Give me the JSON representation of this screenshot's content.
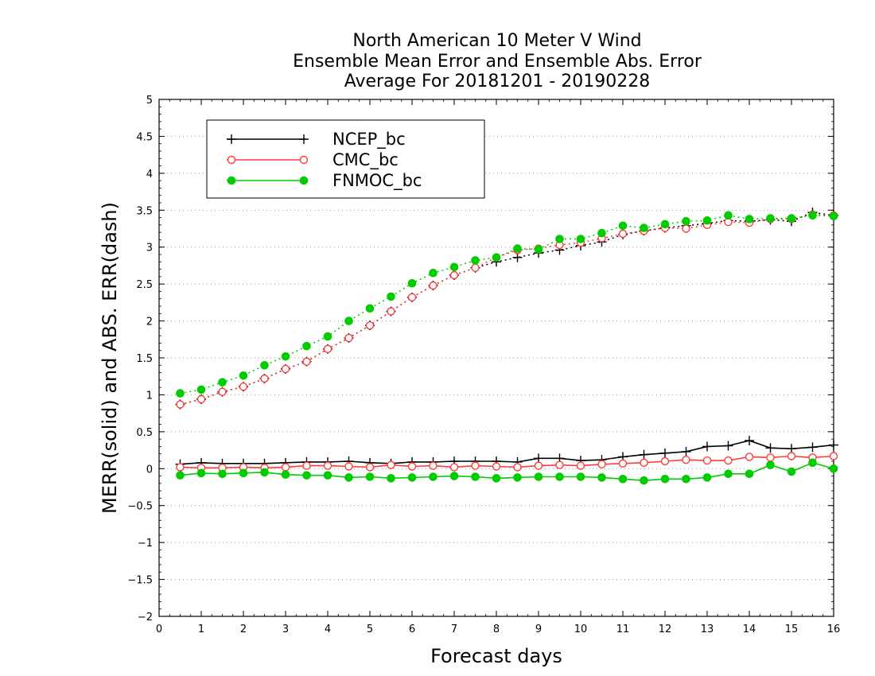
{
  "chart_data": {
    "type": "line",
    "title_lines": [
      "North American 10 Meter V Wind",
      "Ensemble Mean Error and Ensemble Abs. Error",
      "Average For 20181201 - 20190228"
    ],
    "xlabel": "Forecast days",
    "ylabel": "MERR(solid) and ABS. ERR(dash)",
    "xlim": [
      0,
      16
    ],
    "ylim": [
      -2,
      5
    ],
    "x_ticks": [
      "0",
      "1",
      "2",
      "3",
      "4",
      "5",
      "6",
      "7",
      "8",
      "9",
      "10",
      "11",
      "12",
      "13",
      "14",
      "15",
      "16"
    ],
    "y_ticks": [
      "5",
      "4.5",
      "4",
      "3.5",
      "3",
      "2.5",
      "2",
      "1.5",
      "1",
      "0.5",
      "0",
      "-0.5",
      "-1",
      "-1.5",
      "-2"
    ],
    "grid": "dotted horizontal",
    "legend_position": "top-left",
    "x": [
      0.5,
      1,
      1.5,
      2,
      2.5,
      3,
      3.5,
      4,
      4.5,
      5,
      5.5,
      6,
      6.5,
      7,
      7.5,
      8,
      8.5,
      9,
      9.5,
      10,
      10.5,
      11,
      11.5,
      12,
      12.5,
      13,
      13.5,
      14,
      14.5,
      15,
      15.5,
      16
    ],
    "series": [
      {
        "name": "NCEP_bc",
        "color": "#000000",
        "marker": "plus",
        "merr": [
          0.06,
          0.08,
          0.07,
          0.07,
          0.07,
          0.08,
          0.09,
          0.09,
          0.1,
          0.08,
          0.07,
          0.09,
          0.09,
          0.1,
          0.1,
          0.1,
          0.09,
          0.14,
          0.14,
          0.11,
          0.12,
          0.16,
          0.19,
          0.21,
          0.23,
          0.3,
          0.31,
          0.38,
          0.28,
          0.27,
          0.29,
          0.32
        ],
        "abs_err": [
          0.87,
          0.94,
          1.04,
          1.11,
          1.22,
          1.35,
          1.45,
          1.62,
          1.77,
          1.94,
          2.13,
          2.32,
          2.48,
          2.62,
          2.72,
          2.8,
          2.86,
          2.92,
          2.96,
          3.02,
          3.07,
          3.17,
          3.22,
          3.26,
          3.29,
          3.32,
          3.36,
          3.35,
          3.37,
          3.35,
          3.47,
          3.43
        ]
      },
      {
        "name": "CMC_bc",
        "color": "#ff3b3b",
        "marker": "open-circle",
        "merr": [
          0.02,
          0.01,
          0.01,
          0.02,
          0.01,
          0.02,
          0.04,
          0.04,
          0.03,
          0.02,
          0.05,
          0.03,
          0.04,
          0.02,
          0.04,
          0.03,
          0.02,
          0.04,
          0.05,
          0.04,
          0.06,
          0.07,
          0.08,
          0.1,
          0.12,
          0.11,
          0.11,
          0.16,
          0.15,
          0.17,
          0.15,
          0.17
        ],
        "abs_err": [
          0.87,
          0.94,
          1.04,
          1.11,
          1.22,
          1.35,
          1.45,
          1.62,
          1.77,
          1.94,
          2.13,
          2.32,
          2.48,
          2.62,
          2.72,
          2.86,
          2.96,
          2.98,
          3.03,
          3.06,
          3.12,
          3.18,
          3.22,
          3.26,
          3.25,
          3.3,
          3.34,
          3.33,
          3.38,
          3.38,
          3.44,
          3.43
        ]
      },
      {
        "name": "FNMOC_bc",
        "color": "#00cc00",
        "marker": "filled-circle",
        "merr": [
          -0.09,
          -0.06,
          -0.07,
          -0.06,
          -0.05,
          -0.08,
          -0.09,
          -0.09,
          -0.12,
          -0.11,
          -0.13,
          -0.12,
          -0.11,
          -0.1,
          -0.11,
          -0.13,
          -0.12,
          -0.11,
          -0.11,
          -0.11,
          -0.12,
          -0.14,
          -0.16,
          -0.14,
          -0.14,
          -0.12,
          -0.07,
          -0.07,
          0.05,
          -0.04,
          0.08,
          0.0
        ],
        "abs_err": [
          1.02,
          1.07,
          1.17,
          1.26,
          1.4,
          1.52,
          1.66,
          1.79,
          2.0,
          2.17,
          2.33,
          2.51,
          2.65,
          2.73,
          2.82,
          2.86,
          2.98,
          2.97,
          3.11,
          3.11,
          3.19,
          3.29,
          3.26,
          3.31,
          3.35,
          3.36,
          3.43,
          3.38,
          3.39,
          3.39,
          3.43,
          3.42
        ]
      }
    ]
  }
}
